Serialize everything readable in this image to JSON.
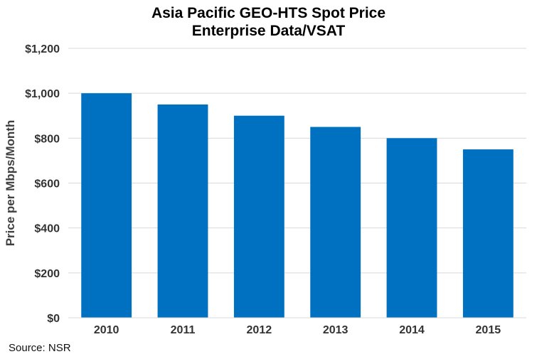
{
  "chart_data": {
    "type": "bar",
    "title": "Asia Pacific GEO-HTS Spot Price",
    "subtitle": "Enterprise Data/VSAT",
    "xlabel": "",
    "ylabel": "Price per Mbps/Month",
    "categories": [
      "2010",
      "2011",
      "2012",
      "2013",
      "2014",
      "2015"
    ],
    "values": [
      1000,
      950,
      900,
      850,
      800,
      750
    ],
    "ylim": [
      0,
      1200
    ],
    "yticks": [
      0,
      200,
      400,
      600,
      800,
      1000,
      1200
    ],
    "ytick_labels": [
      "$0",
      "$200",
      "$400",
      "$600",
      "$800",
      "$1,000",
      "$1,200"
    ],
    "grid": true,
    "legend": "none",
    "bar_color": "#0070C0"
  },
  "source": "Source: NSR"
}
